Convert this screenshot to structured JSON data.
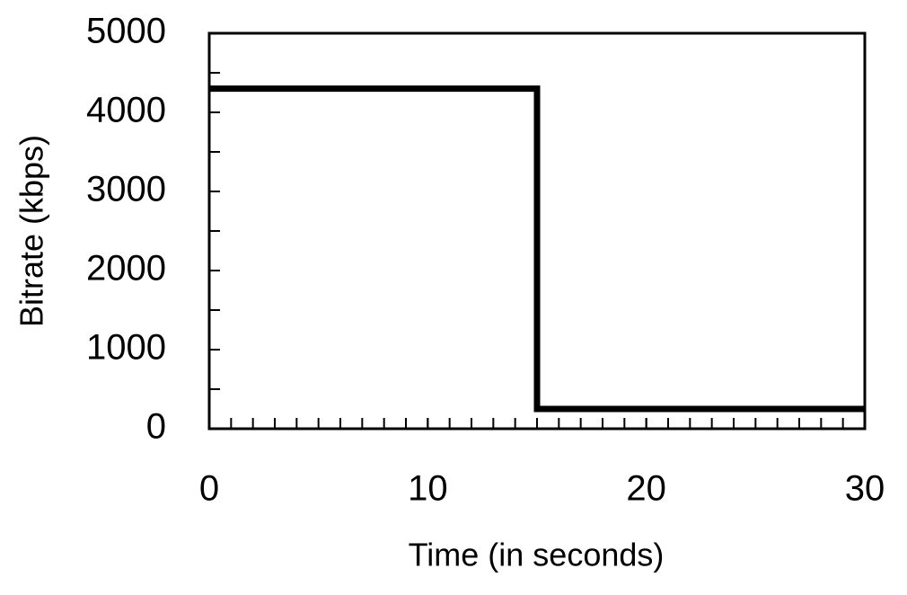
{
  "chart_data": {
    "type": "line",
    "xlabel": "Time (in seconds)",
    "ylabel": "Bitrate (kbps)",
    "x": [
      0,
      15,
      15,
      30
    ],
    "series": [
      {
        "color": "#000000",
        "values": [
          4300,
          4300,
          250,
          250
        ]
      }
    ],
    "xlim": [
      0,
      30
    ],
    "ylim": [
      0,
      5000
    ],
    "xticks": [
      0,
      10,
      20,
      30
    ],
    "yticks": [
      0,
      1000,
      2000,
      3000,
      4000,
      5000
    ],
    "xminorticks": [
      1,
      2,
      3,
      4,
      5,
      6,
      7,
      8,
      9,
      10,
      11,
      12,
      13,
      14,
      15,
      16,
      17,
      18,
      19,
      20,
      21,
      22,
      23,
      24,
      25,
      26,
      27,
      28,
      29
    ],
    "yminorticks": [
      500,
      1000,
      1500,
      2000,
      2500,
      3000,
      3500,
      4000,
      4500
    ],
    "grid": false
  }
}
